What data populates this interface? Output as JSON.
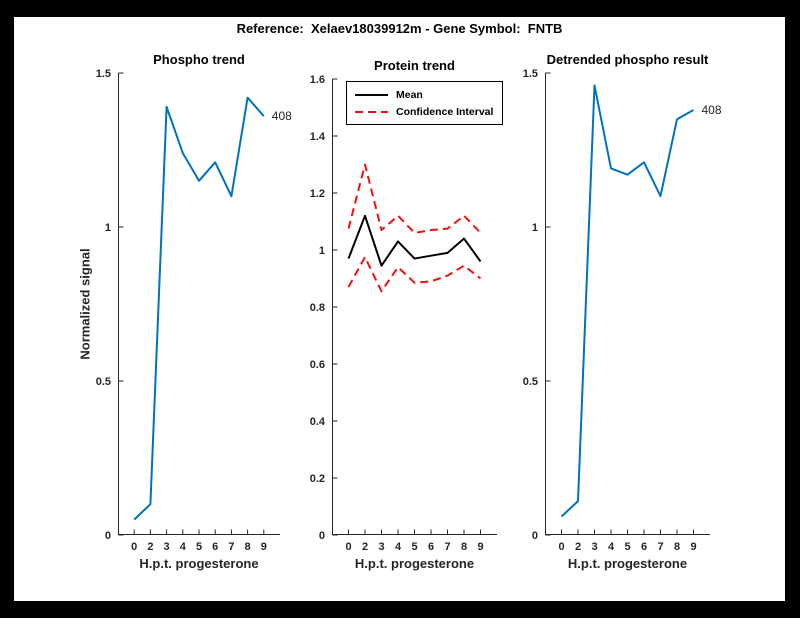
{
  "figure": {
    "title": "Reference:  Xelaev18039912m - Gene Symbol:  FNTB",
    "background_color": "#000000",
    "canvas_color": "#ffffff"
  },
  "style": {
    "axis_color": "#262626",
    "tick_label_color": "#262626",
    "title_color": "#000000",
    "accent_blue": "#0072bd",
    "accent_red": "#ee1111",
    "accent_black": "#000000"
  },
  "chart_data": [
    {
      "type": "line",
      "title": "Phospho trend",
      "xlabel": "H.p.t. progesterone",
      "ylabel": "Normalized signal",
      "xlim": [
        0,
        10
      ],
      "ylim": [
        0,
        1.5
      ],
      "grid": false,
      "x_positions": [
        1,
        2,
        3,
        4,
        5,
        6,
        7,
        8,
        9
      ],
      "x_tick_labels": [
        "0",
        "2",
        "3",
        "4",
        "5",
        "6",
        "7",
        "8",
        "9"
      ],
      "y_ticks": [
        0,
        0.5,
        1,
        1.5
      ],
      "y_tick_labels": [
        "0",
        "0.5",
        "1",
        "1.5"
      ],
      "end_label": "408",
      "series": [
        {
          "name": "phospho-signal",
          "color": "#0072bd",
          "dash": null,
          "width": 2,
          "values": [
            0.05,
            0.1,
            1.39,
            1.24,
            1.15,
            1.21,
            1.1,
            1.42,
            1.36
          ]
        }
      ]
    },
    {
      "type": "line",
      "title": "Protein trend",
      "xlabel": "H.p.t. progesterone",
      "ylabel": "",
      "xlim": [
        0,
        10
      ],
      "ylim": [
        0,
        1.6
      ],
      "grid": false,
      "x_positions": [
        1,
        2,
        3,
        4,
        5,
        6,
        7,
        8,
        9
      ],
      "x_tick_labels": [
        "0",
        "2",
        "3",
        "4",
        "5",
        "6",
        "7",
        "8",
        "9"
      ],
      "y_ticks": [
        0,
        0.2,
        0.4,
        0.6,
        0.8,
        1,
        1.2,
        1.4,
        1.6
      ],
      "y_tick_labels": [
        "0",
        "0.2",
        "0.4",
        "0.6",
        "0.8",
        "1",
        "1.2",
        "1.4",
        "1.6"
      ],
      "legend": {
        "position": "top-left",
        "entries": [
          "Mean",
          "Confidence Interval"
        ]
      },
      "series": [
        {
          "name": "mean",
          "color": "#000000",
          "dash": null,
          "width": 2,
          "values": [
            0.97,
            1.12,
            0.945,
            1.03,
            0.97,
            0.98,
            0.99,
            1.04,
            0.96
          ]
        },
        {
          "name": "confidence-interval-upper",
          "color": "#ee1111",
          "dash": "8 5",
          "width": 2,
          "values": [
            1.075,
            1.3,
            1.07,
            1.12,
            1.06,
            1.07,
            1.075,
            1.12,
            1.06
          ]
        },
        {
          "name": "confidence-interval-lower",
          "color": "#ee1111",
          "dash": "8 5",
          "width": 2,
          "values": [
            0.87,
            0.975,
            0.855,
            0.94,
            0.885,
            0.89,
            0.91,
            0.945,
            0.9
          ]
        }
      ]
    },
    {
      "type": "line",
      "title": "Detrended phospho result",
      "xlabel": "H.p.t. progesterone",
      "ylabel": "",
      "xlim": [
        0,
        10
      ],
      "ylim": [
        0,
        1.5
      ],
      "grid": false,
      "x_positions": [
        1,
        2,
        3,
        4,
        5,
        6,
        7,
        8,
        9
      ],
      "x_tick_labels": [
        "0",
        "2",
        "3",
        "4",
        "5",
        "6",
        "7",
        "8",
        "9"
      ],
      "y_ticks": [
        0,
        0.5,
        1,
        1.5
      ],
      "y_tick_labels": [
        "0",
        "0.5",
        "1",
        "1.5"
      ],
      "end_label": "408",
      "series": [
        {
          "name": "detrended-phospho-signal",
          "color": "#0072bd",
          "dash": null,
          "width": 2,
          "values": [
            0.06,
            0.11,
            1.46,
            1.19,
            1.17,
            1.21,
            1.1,
            1.35,
            1.38
          ]
        }
      ]
    }
  ]
}
